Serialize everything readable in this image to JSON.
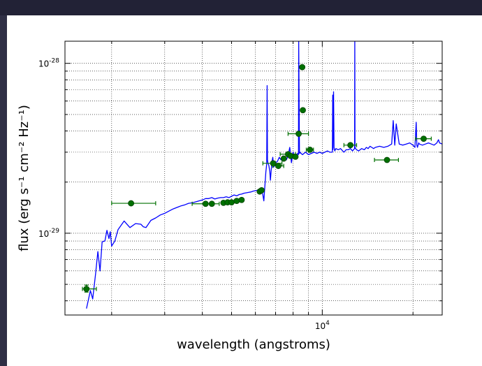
{
  "chart_data": {
    "type": "line",
    "xlabel": "wavelength (angstroms)",
    "ylabel": "flux (erg s⁻¹ cm⁻² Hz⁻¹)",
    "xscale": "log",
    "yscale": "log",
    "xlim": [
      1400,
      25000
    ],
    "ylim": [
      3.3e-30,
      1.35e-28
    ],
    "grid": true,
    "x_tick_labels": [
      {
        "value": 10000,
        "base": "10",
        "exp": "4"
      }
    ],
    "y_tick_labels": [
      {
        "value": 1e-28,
        "base": "10",
        "exp": "-28"
      },
      {
        "value": 1e-29,
        "base": "10",
        "exp": "-29"
      }
    ],
    "series": [
      {
        "color": "#0000ff",
        "x": [
          1650,
          1700,
          1730,
          1770,
          1800,
          1830,
          1860,
          1900,
          1930,
          1960,
          1980,
          2000,
          2050,
          2100,
          2200,
          2300,
          2400,
          2500,
          2550,
          2600,
          2700,
          2800,
          2900,
          3000,
          3100,
          3200,
          3300,
          3400,
          3500,
          3600,
          3700,
          3800,
          3900,
          4000,
          4100,
          4200,
          4300,
          4400,
          4500,
          4600,
          4700,
          4800,
          4900,
          5000,
          5100,
          5200,
          5300,
          5400,
          5500,
          5600,
          5700,
          5800,
          5900,
          6000,
          6100,
          6200,
          6300,
          6400,
          6500,
          6540,
          6563,
          6580,
          6600,
          6650,
          6700,
          6730,
          6800,
          6850,
          6900,
          7000,
          7100,
          7200,
          7300,
          7400,
          7500,
          7600,
          7700,
          7800,
          7900,
          8000,
          8100,
          8200,
          8300,
          8340,
          8350,
          8400,
          8450,
          8500,
          8600,
          8700,
          8800,
          8900,
          9000,
          9200,
          9400,
          9600,
          9800,
          10000,
          10200,
          10400,
          10600,
          10800,
          10830,
          10850,
          10900,
          10940,
          11000,
          11100,
          11300,
          11500,
          11800,
          12000,
          12200,
          12400,
          12600,
          12800,
          12820,
          12840,
          12900,
          13000,
          13200,
          13500,
          13800,
          14000,
          14200,
          14400,
          14600,
          14800,
          15000,
          15500,
          16000,
          16500,
          17000,
          17200,
          17400,
          17600,
          18000,
          18500,
          19000,
          19500,
          20000,
          20300,
          20500,
          20600,
          20700,
          20900,
          21000,
          21500,
          22000,
          22500,
          23000,
          23500,
          24000,
          24300,
          24500,
          25000
        ],
        "y": [
          3.6e-30,
          4.6e-30,
          4.1e-30,
          5.8e-30,
          7.8e-30,
          6e-30,
          8.9e-30,
          9e-30,
          1.04e-29,
          9.3e-30,
          1.02e-29,
          8.4e-30,
          9e-30,
          1.05e-29,
          1.18e-29,
          1.08e-29,
          1.14e-29,
          1.13e-29,
          1.09e-29,
          1.08e-29,
          1.19e-29,
          1.23e-29,
          1.28e-29,
          1.31e-29,
          1.35e-29,
          1.39e-29,
          1.42e-29,
          1.45e-29,
          1.47e-29,
          1.5e-29,
          1.51e-29,
          1.53e-29,
          1.55e-29,
          1.57e-29,
          1.6e-29,
          1.6e-29,
          1.62e-29,
          1.59e-29,
          1.61e-29,
          1.62e-29,
          1.62e-29,
          1.64e-29,
          1.62e-29,
          1.65e-29,
          1.68e-29,
          1.66e-29,
          1.69e-29,
          1.7e-29,
          1.72e-29,
          1.73e-29,
          1.74e-29,
          1.75e-29,
          1.77e-29,
          1.78e-29,
          1.79e-29,
          1.8e-29,
          1.83e-29,
          1.55e-29,
          2.3e-29,
          2.55e-29,
          7.4e-29,
          2.7e-29,
          2.6e-29,
          2.5e-29,
          2.3e-29,
          2.05e-29,
          2.6e-29,
          2.8e-29,
          2.45e-29,
          2.6e-29,
          2.65e-29,
          2.8e-29,
          2.7e-29,
          2.85e-29,
          2.8e-29,
          2.7e-29,
          2.85e-29,
          3.2e-29,
          2.6e-29,
          3e-29,
          2.8e-29,
          2.9e-29,
          2.95e-29,
          2.9e-29,
          1.35e-28,
          2.95e-29,
          3e-29,
          2.95e-29,
          2.9e-29,
          2.95e-29,
          3e-29,
          2.95e-29,
          2.9e-29,
          2.95e-29,
          3e-29,
          2.95e-29,
          3e-29,
          2.95e-29,
          3e-29,
          3.05e-29,
          3e-29,
          3e-29,
          6.5e-29,
          3.1e-29,
          6.8e-29,
          3.2e-29,
          3.05e-29,
          3.15e-29,
          3.1e-29,
          3.15e-29,
          3e-29,
          3.1e-29,
          3.1e-29,
          3.15e-29,
          3.05e-29,
          3.15e-29,
          1.38e-28,
          3.2e-29,
          3.15e-29,
          3.1e-29,
          3.05e-29,
          3.15e-29,
          3.1e-29,
          3.2e-29,
          3.15e-29,
          3.25e-29,
          3.2e-29,
          3.15e-29,
          3.2e-29,
          3.25e-29,
          3.2e-29,
          3.25e-29,
          3.35e-29,
          4.6e-29,
          3.3e-29,
          4.4e-29,
          3.35e-29,
          3.3e-29,
          3.35e-29,
          3.4e-29,
          3.3e-29,
          3.2e-29,
          4.5e-29,
          3.3e-29,
          3.2e-29,
          3.4e-29,
          3.35e-29,
          3.3e-29,
          3.35e-29,
          3.4e-29,
          3.35e-29,
          3.3e-29,
          3.4e-29,
          3.55e-29,
          3.4e-29,
          3.35e-29
        ]
      }
    ],
    "points": {
      "color": "#007000",
      "data": [
        {
          "x": 1650,
          "y": 4.7e-30,
          "xlo": 1600,
          "xhi": 1780,
          "ylo": 4.5e-30,
          "yhi": 4.95e-30
        },
        {
          "x": 2320,
          "y": 1.5e-29,
          "xlo": 2000,
          "xhi": 2800
        },
        {
          "x": 4100,
          "y": 1.49e-29,
          "xlo": 3700,
          "xhi": 4550
        },
        {
          "x": 4300,
          "y": 1.49e-29
        },
        {
          "x": 4700,
          "y": 1.51e-29
        },
        {
          "x": 4850,
          "y": 1.52e-29
        },
        {
          "x": 5000,
          "y": 1.52e-29
        },
        {
          "x": 5200,
          "y": 1.55e-29
        },
        {
          "x": 5400,
          "y": 1.57e-29
        },
        {
          "x": 6200,
          "y": 1.76e-29
        },
        {
          "x": 6290,
          "y": 1.79e-29
        },
        {
          "x": 6870,
          "y": 2.58e-29,
          "xlo": 6350,
          "xhi": 7350
        },
        {
          "x": 7150,
          "y": 2.49e-29,
          "xlo": 6850,
          "xhi": 7450
        },
        {
          "x": 7450,
          "y": 2.75e-29
        },
        {
          "x": 7700,
          "y": 2.92e-29,
          "xlo": 7250,
          "xhi": 8150
        },
        {
          "x": 7850,
          "y": 2.85e-29
        },
        {
          "x": 8150,
          "y": 2.82e-29
        },
        {
          "x": 8350,
          "y": 3.85e-29,
          "xlo": 7700,
          "xhi": 9000
        },
        {
          "x": 8580,
          "y": 9.5e-29
        },
        {
          "x": 8620,
          "y": 5.3e-29
        },
        {
          "x": 9100,
          "y": 3.1e-29,
          "xlo": 8850,
          "xhi": 9350
        },
        {
          "x": 12400,
          "y": 3.3e-29,
          "xlo": 11800,
          "xhi": 13000
        },
        {
          "x": 16400,
          "y": 2.7e-29,
          "xlo": 14900,
          "xhi": 17900
        },
        {
          "x": 21700,
          "y": 3.6e-29,
          "xlo": 20400,
          "xhi": 23000
        }
      ]
    }
  }
}
